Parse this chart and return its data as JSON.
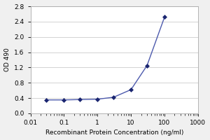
{
  "x": [
    0.03,
    0.1,
    0.3,
    1,
    3,
    10,
    30,
    100
  ],
  "y": [
    0.35,
    0.35,
    0.36,
    0.37,
    0.42,
    0.62,
    1.25,
    2.52
  ],
  "line_color": "#4d5aad",
  "marker_color": "#1a2570",
  "marker_style": "D",
  "marker_size": 3,
  "line_width": 1.0,
  "xlabel": "Recombinant Protein Concentration (ng/ml)",
  "ylabel": "OD 490",
  "xlabel_fontsize": 6.5,
  "ylabel_fontsize": 6.5,
  "tick_fontsize": 6.5,
  "xlim": [
    0.01,
    1000
  ],
  "ylim": [
    0.0,
    2.8
  ],
  "yticks": [
    0.0,
    0.4,
    0.8,
    1.2,
    1.6,
    2.0,
    2.4,
    2.8
  ],
  "ytick_labels": [
    "0.0",
    "0.4",
    "0.8",
    "1.2",
    "1.6",
    "2.0",
    "2.4",
    "2.8"
  ],
  "xtick_labels": [
    "0.01",
    "0.1",
    "1",
    "10",
    "100",
    "1000"
  ],
  "xtick_positions": [
    0.01,
    0.1,
    1,
    10,
    100,
    1000
  ],
  "plot_bg_color": "#ffffff",
  "figure_bg": "#f0f0f0",
  "grid_color": "#cccccc",
  "spine_color": "#aaaaaa"
}
